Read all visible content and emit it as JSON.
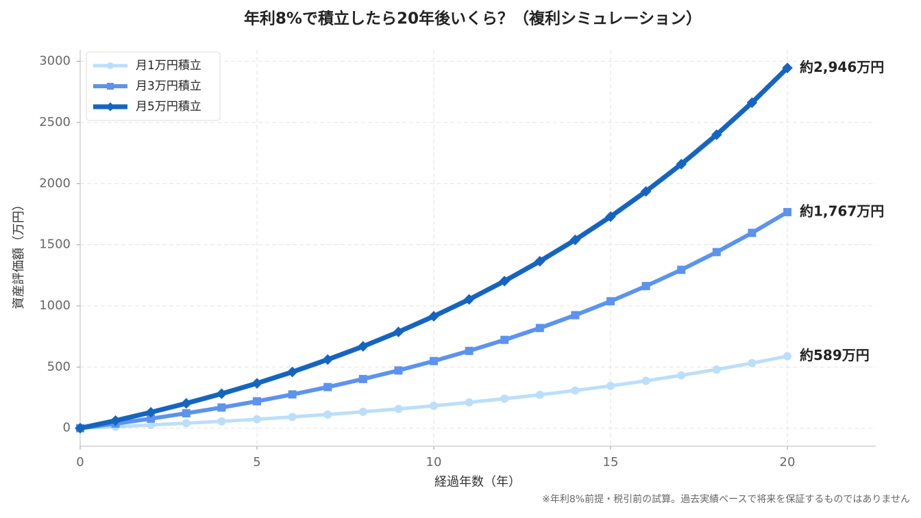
{
  "chart_data": {
    "type": "line",
    "title": "年利8%で積立したら20年後いくら？（複利シミュレーション）",
    "xlabel": "経過年数（年）",
    "ylabel": "資産評価額（万円）",
    "footnote": "※年利8%前提・税引前の試算。過去実績ベースで将来を保証するものではありません",
    "x": [
      0,
      1,
      2,
      3,
      4,
      5,
      6,
      7,
      8,
      9,
      10,
      11,
      12,
      13,
      14,
      15,
      16,
      17,
      18,
      19,
      20
    ],
    "series": [
      {
        "name": "月1万円積立",
        "color": "#bbdefb",
        "marker": "circle",
        "end_label": "約589万円",
        "values": [
          0,
          12,
          26,
          41,
          56,
          73,
          92,
          112,
          134,
          157,
          183,
          211,
          241,
          273,
          308,
          346,
          387,
          432,
          480,
          532,
          589
        ]
      },
      {
        "name": "月3万円積立",
        "color": "#5b93ee",
        "marker": "square",
        "end_label": "約1,767万円",
        "values": [
          0,
          37,
          78,
          122,
          169,
          220,
          276,
          336,
          402,
          472,
          549,
          632,
          722,
          819,
          924,
          1038,
          1162,
          1295,
          1440,
          1597,
          1767
        ]
      },
      {
        "name": "月5万円積立",
        "color": "#1565c0",
        "marker": "diamond",
        "end_label": "約2,946万円",
        "values": [
          0,
          62,
          130,
          203,
          282,
          367,
          460,
          561,
          669,
          787,
          915,
          1053,
          1203,
          1365,
          1540,
          1730,
          1936,
          2159,
          2400,
          2662,
          2946
        ]
      }
    ],
    "xlim": [
      0,
      22.5
    ],
    "ylim": [
      -147,
      3093
    ],
    "xticks": [
      0,
      5,
      10,
      15,
      20
    ],
    "yticks": [
      0,
      500,
      1000,
      1500,
      2000,
      2500,
      3000
    ],
    "grid": true,
    "legend": "upper-left"
  }
}
